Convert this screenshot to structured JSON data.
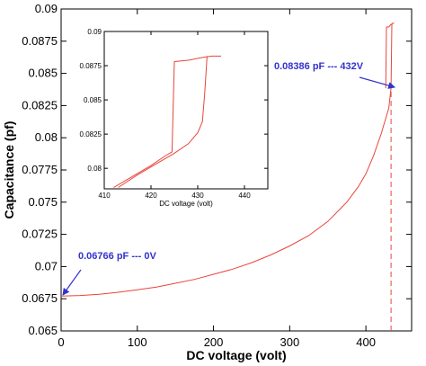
{
  "chart_data": [
    {
      "type": "line",
      "xlabel": "DC voltage (volt)",
      "ylabel": "Capacitance (pf)",
      "xlim": [
        0,
        460
      ],
      "ylim": [
        0.065,
        0.09
      ],
      "xticks": [
        "0",
        "100",
        "200",
        "300",
        "400"
      ],
      "xtick_values": [
        0,
        100,
        200,
        300,
        400
      ],
      "yticks": [
        "0.065",
        "0.0675",
        "0.07",
        "0.0725",
        "0.075",
        "0.0775",
        "0.08",
        "0.0825",
        "0.085",
        "0.0875",
        "0.09"
      ],
      "ytick_values": [
        0.065,
        0.0675,
        0.07,
        0.0725,
        0.075,
        0.0775,
        0.08,
        0.0825,
        0.085,
        0.0875,
        0.09
      ],
      "grid": false,
      "series": [
        {
          "x": [
            0,
            25,
            50,
            75,
            100,
            125,
            150,
            175,
            200,
            225,
            250,
            275,
            300,
            325,
            350,
            375,
            390,
            400,
            410,
            420,
            425,
            430,
            433
          ],
          "y": [
            0.0677,
            0.06775,
            0.06785,
            0.068,
            0.0682,
            0.0684,
            0.0687,
            0.069,
            0.0694,
            0.0698,
            0.0703,
            0.0709,
            0.0716,
            0.0724,
            0.0735,
            0.075,
            0.0762,
            0.0772,
            0.0786,
            0.0803,
            0.0813,
            0.0823,
            0.08386
          ],
          "color": "#e8453c"
        },
        {
          "x": [
            426,
            427,
            430,
            433,
            436,
            437
          ],
          "y": [
            0.08386,
            0.0886,
            0.0886,
            0.0888,
            0.0889,
            0.0889
          ],
          "color": "#e8453c"
        },
        {
          "x": [
            433,
            434,
            435
          ],
          "y": [
            0.08386,
            0.0888,
            0.0889
          ],
          "color": "#e8453c"
        }
      ],
      "vline": {
        "x": 433,
        "from": 0.065,
        "to": 0.0838,
        "style": "dashed",
        "color": "#e8453c"
      },
      "annotations": [
        {
          "text": "0.08386 pF --- 432V",
          "color": "#3333cc",
          "x": 433,
          "y": 0.08386
        },
        {
          "text": "0.06766 pF --- 0V",
          "color": "#3333cc",
          "x": 0,
          "y": 0.06766
        }
      ]
    },
    {
      "type": "line",
      "inset": true,
      "xlabel": "DC voltage (volt)",
      "ylabel": "",
      "xlim": [
        410,
        445
      ],
      "ylim": [
        0.0785,
        0.09
      ],
      "xticks": [
        "410",
        "420",
        "430",
        "440"
      ],
      "xtick_values": [
        410,
        420,
        430,
        440
      ],
      "yticks": [
        "0.08",
        "0.0825",
        "0.085",
        "0.0875",
        "0.09"
      ],
      "ytick_values": [
        0.08,
        0.0825,
        0.085,
        0.0875,
        0.09
      ],
      "series": [
        {
          "x": [
            412,
            416,
            420,
            423,
            424.5,
            425,
            428,
            431,
            433,
            435
          ],
          "y": [
            0.0786,
            0.0794,
            0.0802,
            0.0809,
            0.0812,
            0.0878,
            0.0879,
            0.0881,
            0.0882,
            0.0882
          ],
          "color": "#e8453c"
        },
        {
          "x": [
            413,
            417,
            421,
            425,
            428,
            430,
            431,
            431.5,
            432
          ],
          "y": [
            0.0786,
            0.0795,
            0.0803,
            0.0811,
            0.0818,
            0.0826,
            0.0834,
            0.0855,
            0.0882
          ],
          "color": "#e8453c"
        }
      ]
    }
  ],
  "colors": {
    "curve": "#e8453c",
    "annotation": "#3333cc",
    "axis": "#000000"
  }
}
